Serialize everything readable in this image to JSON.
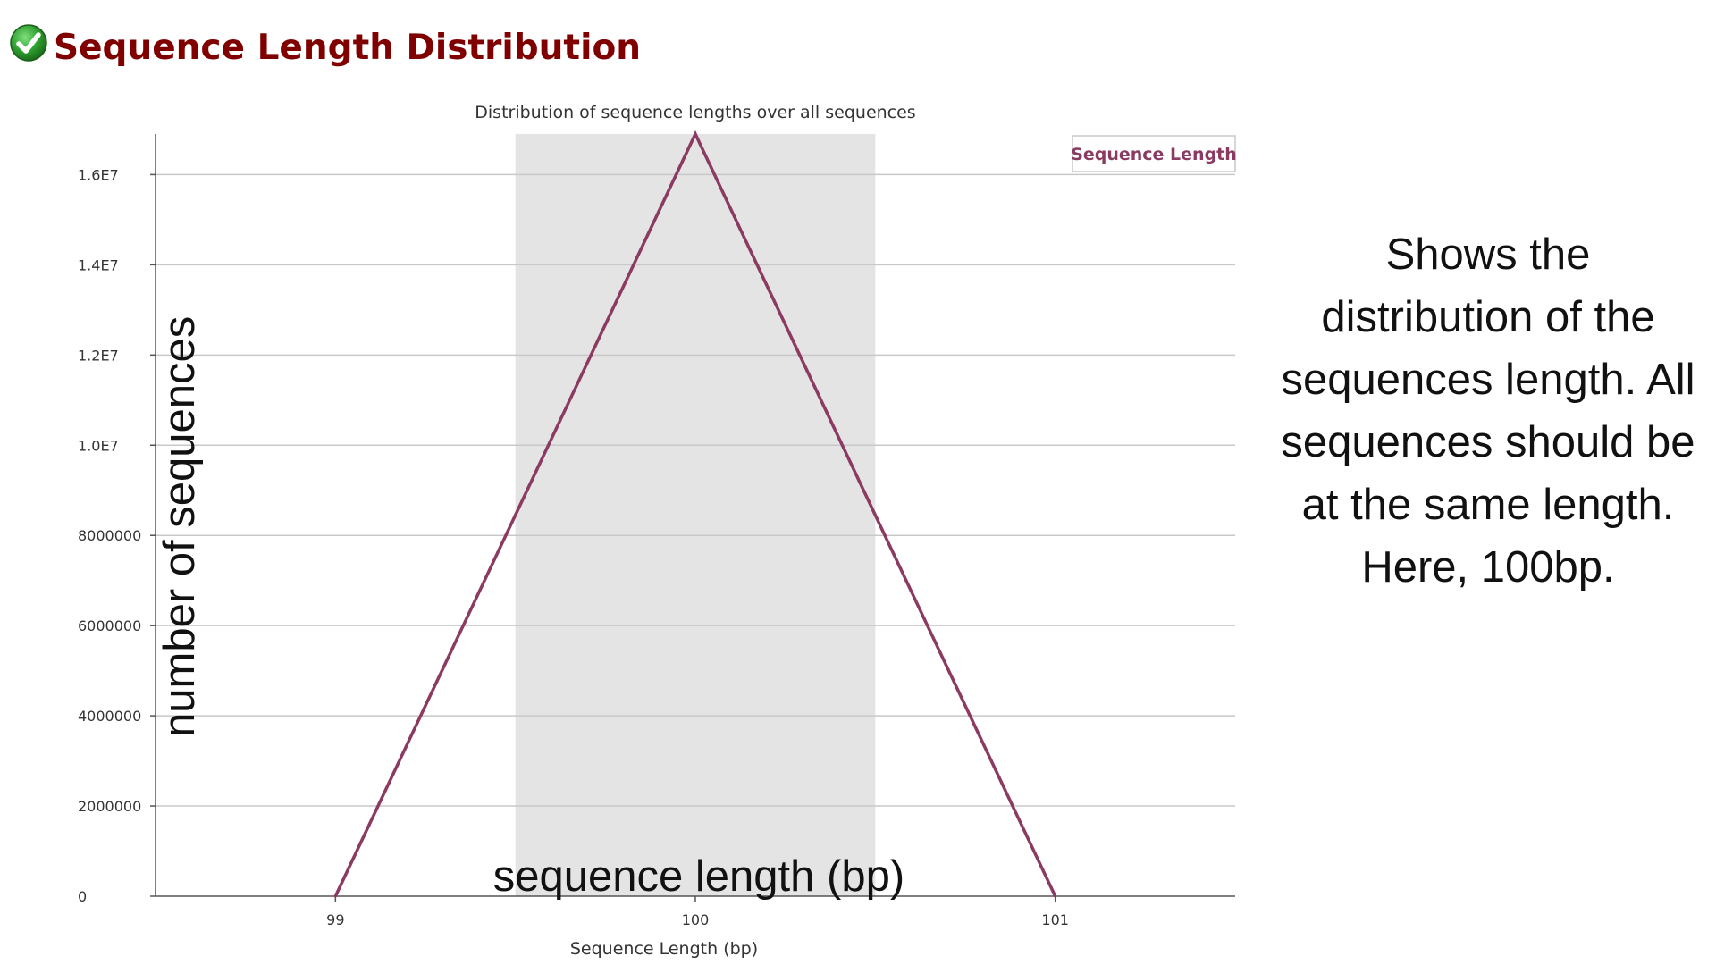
{
  "header": {
    "status": "pass",
    "status_icon": "check-circle-icon",
    "status_color": "#2e9e2e",
    "title": "Sequence Length Distribution",
    "title_color": "#800000"
  },
  "chart_data": {
    "type": "line",
    "title": "Distribution of sequence lengths over all sequences",
    "xlabel": "Sequence Length (bp)",
    "ylabel": "",
    "x": [
      99,
      100,
      101
    ],
    "x_tick_labels": [
      "99",
      "100",
      "101"
    ],
    "xlim": [
      98.5,
      101.5
    ],
    "ylim": [
      0,
      16900000
    ],
    "y_ticks": [
      0,
      2000000,
      4000000,
      6000000,
      8000000,
      10000000,
      12000000,
      14000000,
      16000000
    ],
    "y_tick_labels": [
      "0",
      "2000000",
      "4000000",
      "6000000",
      "8000000",
      "1.0E7",
      "1.2E7",
      "1.4E7",
      "1.6E7"
    ],
    "grid": true,
    "highlight_band": {
      "x_range": [
        99.5,
        100.5
      ],
      "color": "#e4e4e4"
    },
    "series": [
      {
        "name": "Sequence Length",
        "color": "#8b3a62",
        "values": [
          0,
          16900000,
          0
        ]
      }
    ],
    "legend_position": "top-right"
  },
  "annotations": {
    "y_axis_overlay": "number of sequences",
    "x_axis_overlay": "sequence length (bp)",
    "description_lines": [
      "Shows the",
      "distribution of the",
      "sequences length. All",
      "sequences should be",
      "at the same length.",
      "Here, 100bp."
    ]
  }
}
